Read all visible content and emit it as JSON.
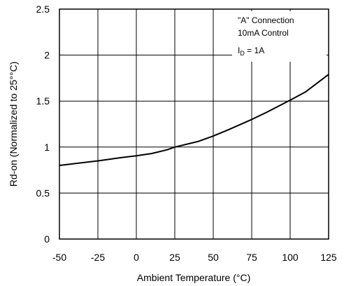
{
  "chart_data": {
    "type": "line",
    "title": "",
    "xlabel": "Ambient Temperature (°C)",
    "ylabel": "Rd-on (Normalized to 25°°C)",
    "xlim": [
      -50,
      125
    ],
    "ylim": [
      0,
      2.5
    ],
    "x_ticks": [
      "-50",
      "-25",
      "0",
      "25",
      "50",
      "75",
      "100",
      "125"
    ],
    "y_ticks": [
      "0",
      "0.5",
      "1",
      "1.5",
      "2",
      "2.5"
    ],
    "grid": true,
    "annotation": {
      "line1": "\"A\" Connection",
      "line2": "10mA Control",
      "line3_prefix": "I",
      "line3_sub": "D",
      "line3_suffix": " = 1A"
    },
    "series": [
      {
        "x": [
          -50,
          -40,
          -25,
          -10,
          0,
          10,
          20,
          25,
          40,
          50,
          60,
          75,
          85,
          100,
          110,
          125
        ],
        "values": [
          0.8,
          0.82,
          0.85,
          0.885,
          0.905,
          0.93,
          0.97,
          1.0,
          1.06,
          1.12,
          1.19,
          1.3,
          1.38,
          1.51,
          1.6,
          1.79
        ]
      }
    ]
  }
}
